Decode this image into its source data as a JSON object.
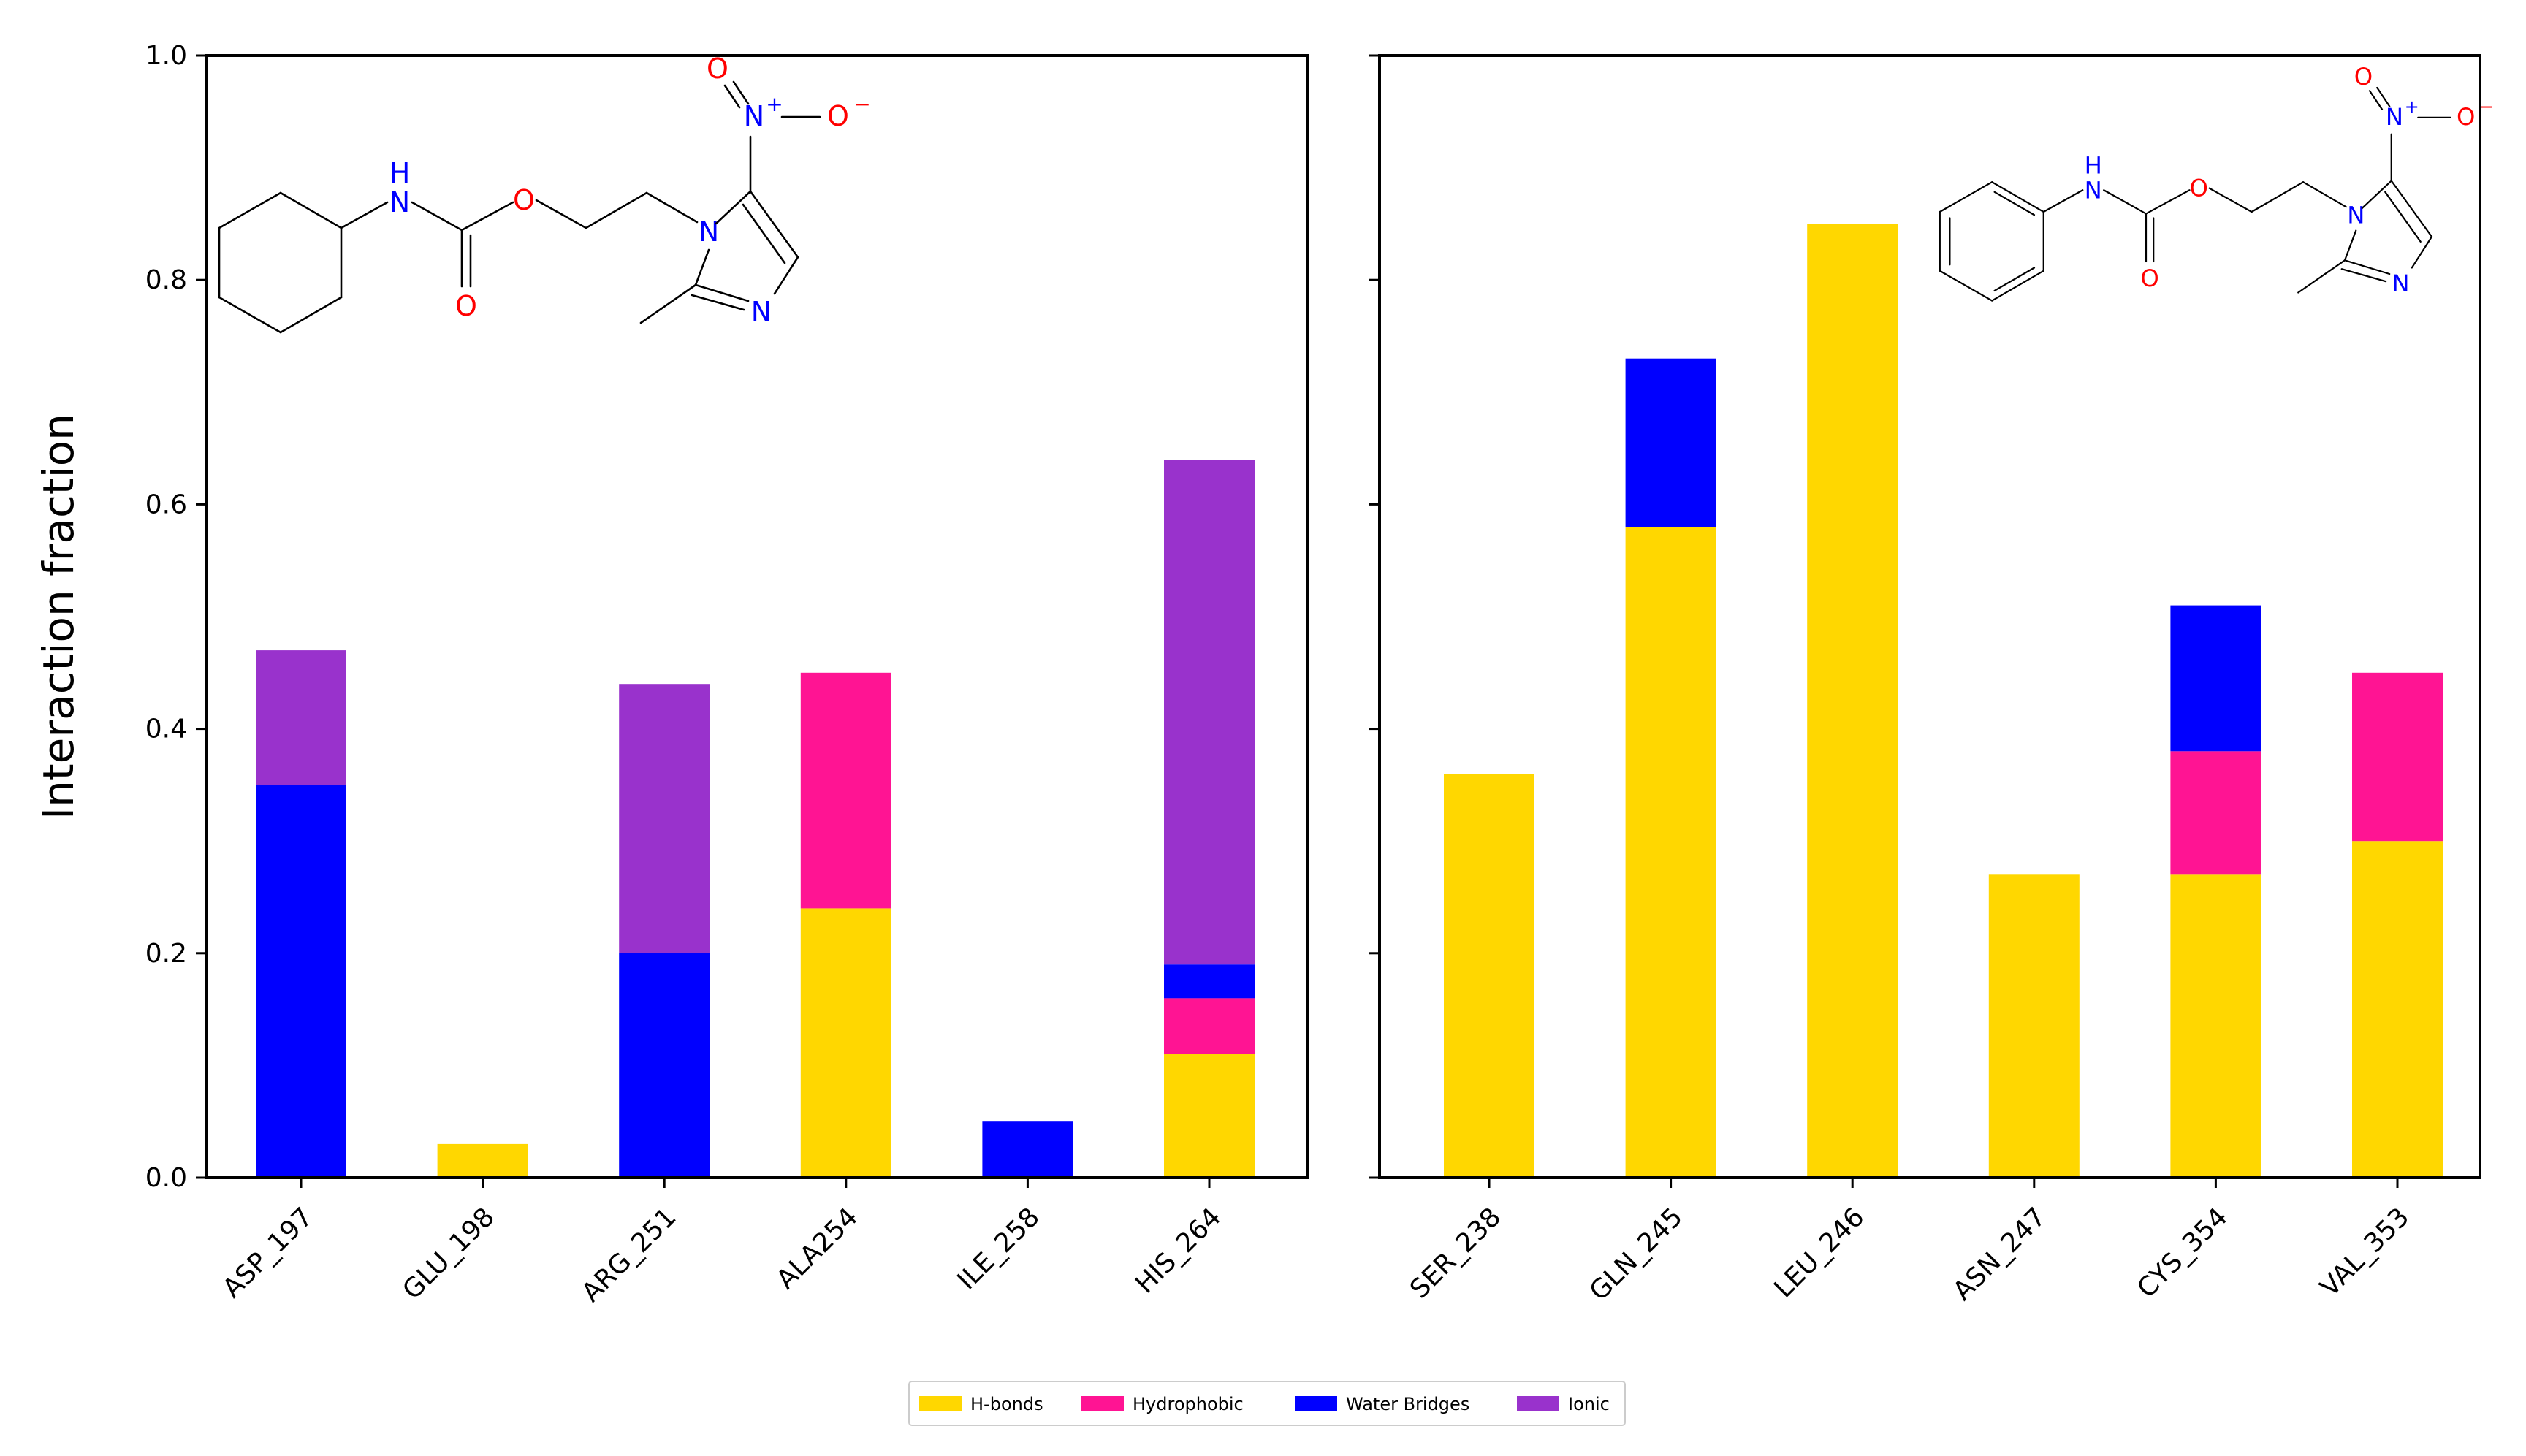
{
  "chart_data": [
    {
      "type": "bar",
      "stacked": true,
      "panel": "left",
      "title": "",
      "xlabel": "",
      "ylabel": "Interaction fraction",
      "ylim": [
        0,
        1.0
      ],
      "yticks": [
        "0.0",
        "0.2",
        "0.4",
        "0.6",
        "0.8",
        "1.0"
      ],
      "categories": [
        "ASP_197",
        "GLU_198",
        "ARG_251",
        "ALA254",
        "ILE_258",
        "HIS_264"
      ],
      "series": [
        {
          "name": "H-bonds",
          "values": [
            0,
            0.03,
            0,
            0.24,
            0,
            0.11
          ]
        },
        {
          "name": "Hydrophobic",
          "values": [
            0,
            0,
            0,
            0.21,
            0,
            0.05
          ]
        },
        {
          "name": "Water Bridges",
          "values": [
            0.35,
            0,
            0.2,
            0,
            0.05,
            0.03
          ]
        },
        {
          "name": "Ionic",
          "values": [
            0.12,
            0,
            0.24,
            0,
            0,
            0.45
          ]
        }
      ],
      "molecule": {
        "ring": "cyclohexyl",
        "atoms": {
          "nh_n": "N",
          "nh_h": "H",
          "ester_o": "O",
          "carbonyl_o": "O",
          "ring_n1": "N",
          "ring_n3": "N",
          "nitro_n": "N",
          "nitro_plus": "+",
          "nitro_o_left": "O",
          "nitro_o_right": "O",
          "nitro_minus": "−"
        }
      }
    },
    {
      "type": "bar",
      "stacked": true,
      "panel": "right",
      "title": "",
      "xlabel": "",
      "ylabel": "",
      "ylim": [
        0,
        1.0
      ],
      "categories": [
        "SER_238",
        "GLN_245",
        "LEU_246",
        "ASN_247",
        "CYS_354",
        "VAL_353"
      ],
      "series": [
        {
          "name": "H-bonds",
          "values": [
            0.36,
            0.58,
            0.85,
            0.27,
            0.27,
            0.3
          ]
        },
        {
          "name": "Hydrophobic",
          "values": [
            0,
            0,
            0,
            0,
            0.11,
            0.15
          ]
        },
        {
          "name": "Water Bridges",
          "values": [
            0,
            0.15,
            0,
            0,
            0.13,
            0
          ]
        },
        {
          "name": "Ionic",
          "values": [
            0,
            0,
            0,
            0,
            0,
            0
          ]
        }
      ],
      "molecule": {
        "ring": "phenyl",
        "atoms": {
          "nh_n": "N",
          "nh_h": "H",
          "ester_o": "O",
          "carbonyl_o": "O",
          "ring_n1": "N",
          "ring_n3": "N",
          "nitro_n": "N",
          "nitro_plus": "+",
          "nitro_o_left": "O",
          "nitro_o_right": "O",
          "nitro_minus": "−"
        }
      }
    }
  ],
  "legend": {
    "placement": "bottom-center",
    "entries": [
      {
        "label": "H-bonds",
        "color": "#FFD700"
      },
      {
        "label": "Hydrophobic",
        "color": "#FF1493"
      },
      {
        "label": "Water Bridges",
        "color": "#0000FF"
      },
      {
        "label": "Ionic",
        "color": "#9932CC"
      }
    ]
  },
  "colors": {
    "H-bonds": "#FFD700",
    "Hydrophobic": "#FF1493",
    "Water Bridges": "#0000FF",
    "Ionic": "#9932CC",
    "nitrogen": "#0000FF",
    "oxygen": "#FF0000",
    "bond": "#000000"
  }
}
